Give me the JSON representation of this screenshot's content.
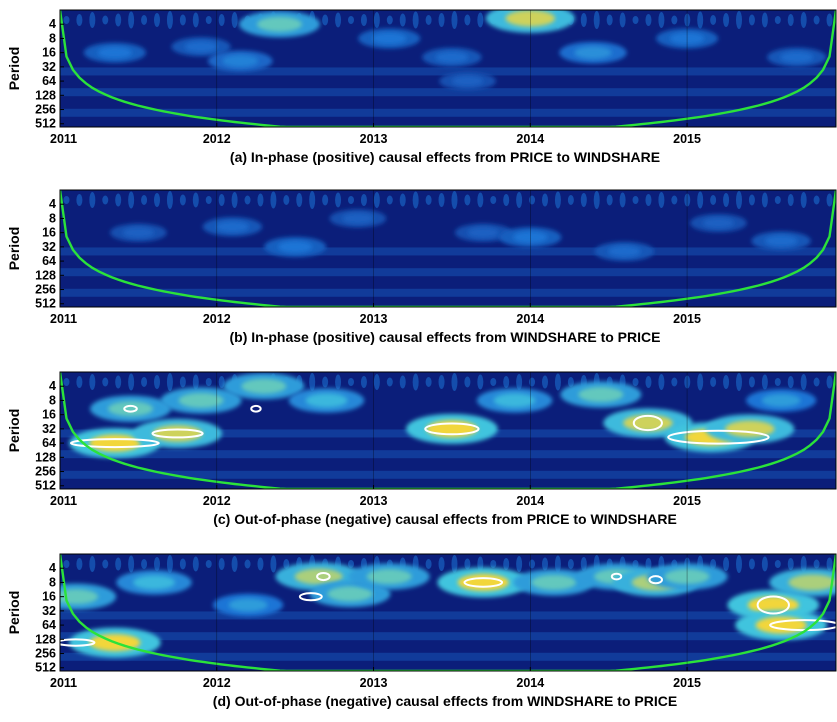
{
  "chart_data": [
    {
      "type": "heatmap",
      "ylabel": "Period",
      "x_ticks": [
        "2011",
        "2012",
        "2013",
        "2014",
        "2015"
      ],
      "y_ticks": [
        "4",
        "8",
        "16",
        "32",
        "64",
        "128",
        "256",
        "512"
      ],
      "xlim": [
        2011,
        2015.95
      ],
      "ylim": [
        2,
        600
      ],
      "y_scale": "log2",
      "caption": "(a)  In-phase (positive) causal effects from PRICE to WINDSHARE",
      "colors": {
        "low": "#0b1e7a",
        "mid": "#1e74d6",
        "high": "#f2d63a",
        "cone": "#2be23a",
        "contour": "#ffffff"
      },
      "hotspots": [
        {
          "x": 2011.35,
          "period": 16,
          "intensity": 0.45
        },
        {
          "x": 2011.9,
          "period": 12,
          "intensity": 0.4
        },
        {
          "x": 2012.4,
          "period": 4,
          "intensity": 0.8
        },
        {
          "x": 2012.15,
          "period": 24,
          "intensity": 0.5
        },
        {
          "x": 2013.1,
          "period": 8,
          "intensity": 0.45
        },
        {
          "x": 2013.5,
          "period": 20,
          "intensity": 0.4
        },
        {
          "x": 2014.0,
          "period": 3,
          "intensity": 0.95
        },
        {
          "x": 2014.4,
          "period": 16,
          "intensity": 0.55
        },
        {
          "x": 2013.6,
          "period": 64,
          "intensity": 0.35
        },
        {
          "x": 2015.0,
          "period": 8,
          "intensity": 0.45
        },
        {
          "x": 2015.7,
          "period": 20,
          "intensity": 0.4
        }
      ],
      "contours": []
    },
    {
      "type": "heatmap",
      "ylabel": "Period",
      "x_ticks": [
        "2011",
        "2012",
        "2013",
        "2014",
        "2015"
      ],
      "y_ticks": [
        "4",
        "8",
        "16",
        "32",
        "64",
        "128",
        "256",
        "512"
      ],
      "xlim": [
        2011,
        2015.95
      ],
      "ylim": [
        2,
        600
      ],
      "y_scale": "log2",
      "caption": "(b) In-phase (positive) causal effects from WINDSHARE to PRICE",
      "colors": {
        "low": "#0b1e7a",
        "mid": "#1e74d6",
        "high": "#f2d63a",
        "cone": "#2be23a",
        "contour": "#ffffff"
      },
      "hotspots": [
        {
          "x": 2011.5,
          "period": 16,
          "intensity": 0.35
        },
        {
          "x": 2012.1,
          "period": 12,
          "intensity": 0.4
        },
        {
          "x": 2012.5,
          "period": 32,
          "intensity": 0.45
        },
        {
          "x": 2012.9,
          "period": 8,
          "intensity": 0.35
        },
        {
          "x": 2013.7,
          "period": 16,
          "intensity": 0.35
        },
        {
          "x": 2014.0,
          "period": 20,
          "intensity": 0.45
        },
        {
          "x": 2014.6,
          "period": 40,
          "intensity": 0.4
        },
        {
          "x": 2015.2,
          "period": 10,
          "intensity": 0.35
        },
        {
          "x": 2015.6,
          "period": 24,
          "intensity": 0.4
        }
      ],
      "contours": []
    },
    {
      "type": "heatmap",
      "ylabel": "Period",
      "x_ticks": [
        "2011",
        "2012",
        "2013",
        "2014",
        "2015"
      ],
      "y_ticks": [
        "4",
        "8",
        "16",
        "32",
        "64",
        "128",
        "256",
        "512"
      ],
      "xlim": [
        2011,
        2015.95
      ],
      "ylim": [
        2,
        600
      ],
      "y_scale": "log2",
      "caption": "(c)  Out-of-phase (negative) causal effects from PRICE to WINDSHARE",
      "colors": {
        "low": "#0b1e7a",
        "mid": "#1e74d6",
        "high": "#f2d63a",
        "cone": "#2be23a",
        "contour": "#ffffff"
      },
      "hotspots": [
        {
          "x": 2011.35,
          "period": 64,
          "intensity": 1.0
        },
        {
          "x": 2011.75,
          "period": 40,
          "intensity": 0.95
        },
        {
          "x": 2011.45,
          "period": 12,
          "intensity": 0.8
        },
        {
          "x": 2011.9,
          "period": 8,
          "intensity": 0.8
        },
        {
          "x": 2012.3,
          "period": 4,
          "intensity": 0.8
        },
        {
          "x": 2012.7,
          "period": 8,
          "intensity": 0.7
        },
        {
          "x": 2013.5,
          "period": 32,
          "intensity": 1.0
        },
        {
          "x": 2013.9,
          "period": 8,
          "intensity": 0.7
        },
        {
          "x": 2014.45,
          "period": 6,
          "intensity": 0.8
        },
        {
          "x": 2014.75,
          "period": 24,
          "intensity": 0.95
        },
        {
          "x": 2015.15,
          "period": 48,
          "intensity": 1.0
        },
        {
          "x": 2015.4,
          "period": 32,
          "intensity": 0.95
        },
        {
          "x": 2015.6,
          "period": 8,
          "intensity": 0.6
        }
      ],
      "contours": [
        {
          "x": 2011.35,
          "period": 64,
          "half_width_years": 0.28,
          "half_height_octaves": 0.28
        },
        {
          "x": 2011.75,
          "period": 40,
          "half_width_years": 0.16,
          "half_height_octaves": 0.28
        },
        {
          "x": 2011.45,
          "period": 12,
          "half_width_years": 0.04,
          "half_height_octaves": 0.2
        },
        {
          "x": 2012.25,
          "period": 12,
          "half_width_years": 0.03,
          "half_height_octaves": 0.2
        },
        {
          "x": 2013.5,
          "period": 32,
          "half_width_years": 0.17,
          "half_height_octaves": 0.38
        },
        {
          "x": 2014.75,
          "period": 24,
          "half_width_years": 0.09,
          "half_height_octaves": 0.5
        },
        {
          "x": 2015.2,
          "period": 48,
          "half_width_years": 0.32,
          "half_height_octaves": 0.45
        }
      ]
    },
    {
      "type": "heatmap",
      "ylabel": "Period",
      "x_ticks": [
        "2011",
        "2012",
        "2013",
        "2014",
        "2015"
      ],
      "y_ticks": [
        "4",
        "8",
        "16",
        "32",
        "64",
        "128",
        "256",
        "512"
      ],
      "xlim": [
        2011,
        2015.95
      ],
      "ylim": [
        2,
        600
      ],
      "y_scale": "log2",
      "caption": "(d) Out-of-phase (negative) causal effects from WINDSHARE to PRICE",
      "colors": {
        "low": "#0b1e7a",
        "mid": "#1e74d6",
        "high": "#f2d63a",
        "cone": "#2be23a",
        "contour": "#ffffff"
      },
      "hotspots": [
        {
          "x": 2011.35,
          "period": 150,
          "intensity": 1.0
        },
        {
          "x": 2011.1,
          "period": 16,
          "intensity": 0.8
        },
        {
          "x": 2011.6,
          "period": 8,
          "intensity": 0.7
        },
        {
          "x": 2012.2,
          "period": 24,
          "intensity": 0.6
        },
        {
          "x": 2012.65,
          "period": 6,
          "intensity": 0.9
        },
        {
          "x": 2012.85,
          "period": 14,
          "intensity": 0.8
        },
        {
          "x": 2013.1,
          "period": 6,
          "intensity": 0.8
        },
        {
          "x": 2013.7,
          "period": 8,
          "intensity": 1.0
        },
        {
          "x": 2014.15,
          "period": 8,
          "intensity": 0.8
        },
        {
          "x": 2014.55,
          "period": 6,
          "intensity": 0.8
        },
        {
          "x": 2014.8,
          "period": 8,
          "intensity": 0.9
        },
        {
          "x": 2015.0,
          "period": 6,
          "intensity": 0.8
        },
        {
          "x": 2015.55,
          "period": 24,
          "intensity": 1.0
        },
        {
          "x": 2015.6,
          "period": 64,
          "intensity": 1.0
        },
        {
          "x": 2015.8,
          "period": 8,
          "intensity": 0.9
        }
      ],
      "contours": [
        {
          "x": 2011.1,
          "period": 150,
          "half_width_years": 0.12,
          "half_height_octaves": 0.22
        },
        {
          "x": 2012.6,
          "period": 16,
          "half_width_years": 0.07,
          "half_height_octaves": 0.25
        },
        {
          "x": 2012.68,
          "period": 6,
          "half_width_years": 0.04,
          "half_height_octaves": 0.25
        },
        {
          "x": 2013.7,
          "period": 8,
          "half_width_years": 0.12,
          "half_height_octaves": 0.3
        },
        {
          "x": 2014.55,
          "period": 6,
          "half_width_years": 0.03,
          "half_height_octaves": 0.2
        },
        {
          "x": 2014.8,
          "period": 7,
          "half_width_years": 0.04,
          "half_height_octaves": 0.25
        },
        {
          "x": 2015.55,
          "period": 24,
          "half_width_years": 0.1,
          "half_height_octaves": 0.6
        },
        {
          "x": 2015.75,
          "period": 64,
          "half_width_years": 0.22,
          "half_height_octaves": 0.35
        }
      ]
    }
  ]
}
